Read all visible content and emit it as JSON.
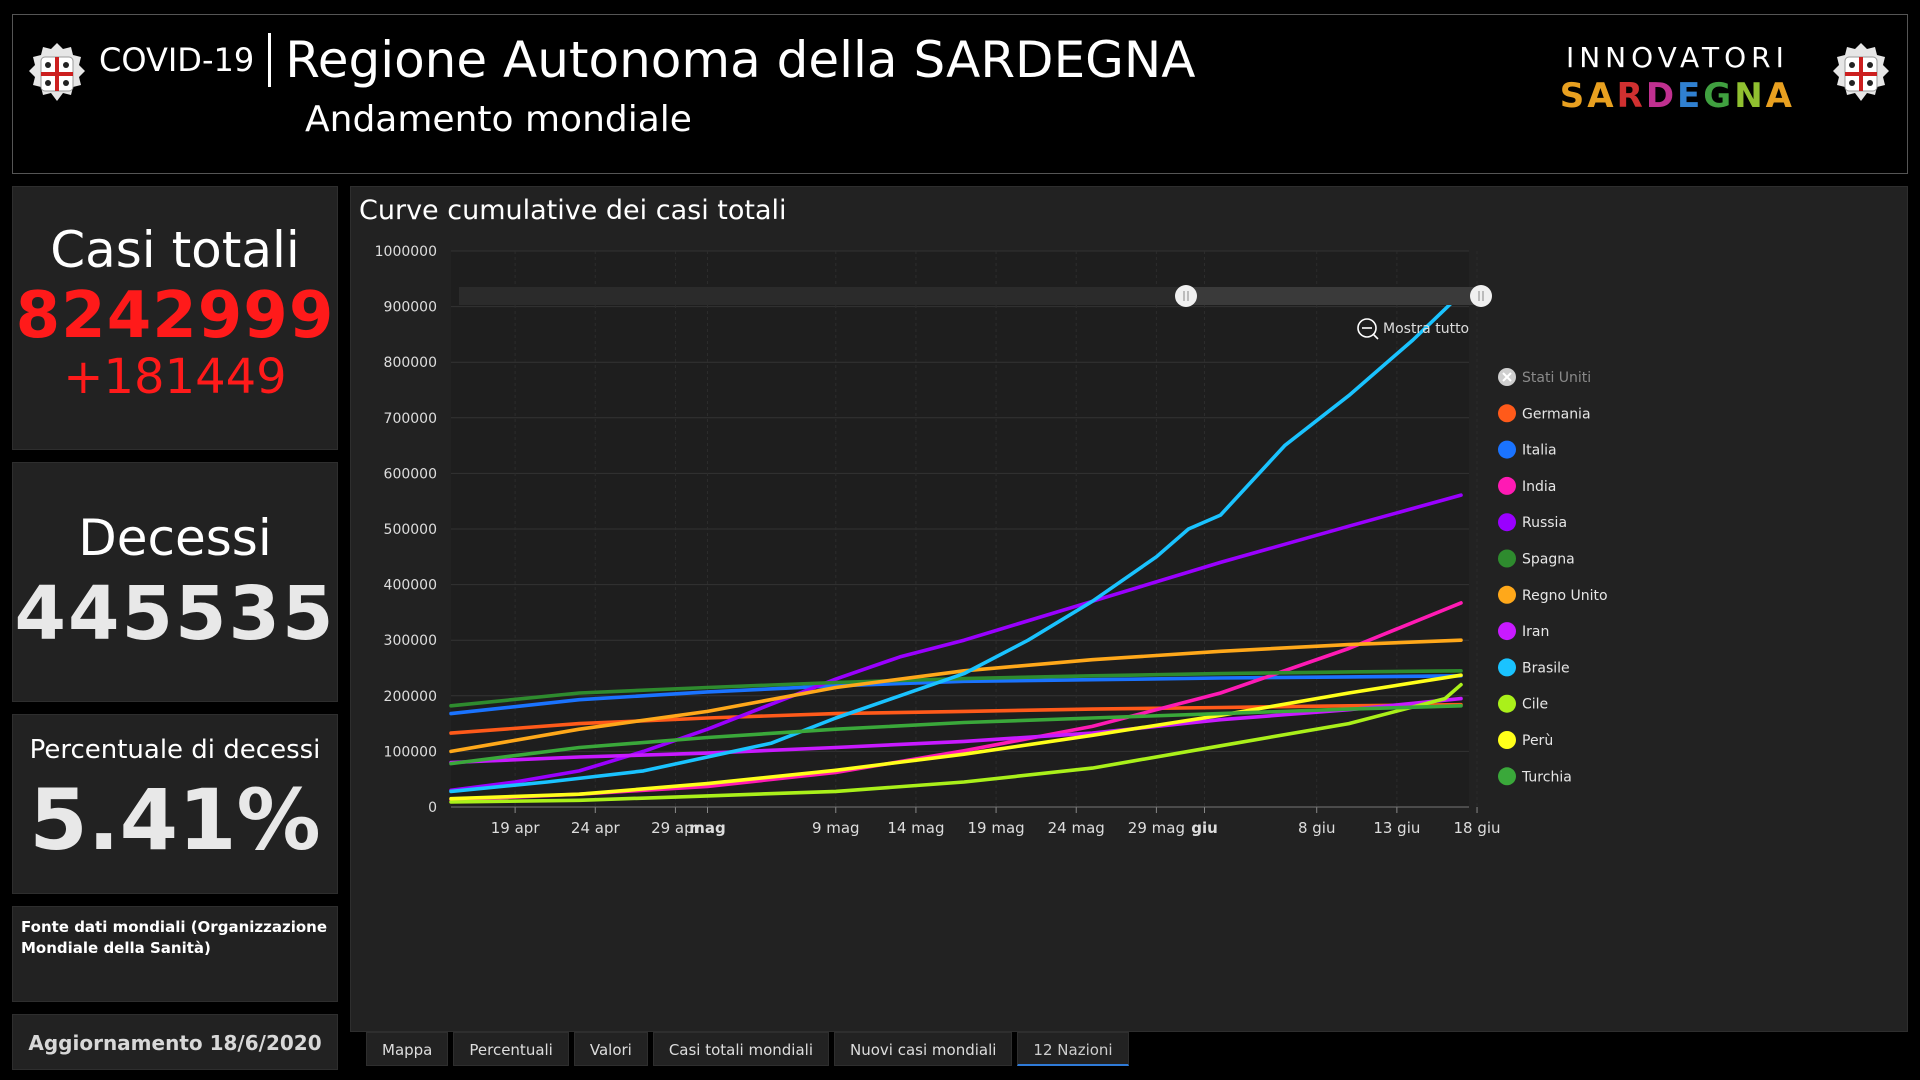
{
  "header": {
    "covid_label": "COVID-19",
    "region_title": "Regione Autonoma della SARDEGNA",
    "subtitle": "Andamento mondiale",
    "logo_top": "INNOVATORI",
    "logo_bottom_letters": [
      "S",
      "A",
      "R",
      "D",
      "E",
      "G",
      "N",
      "A"
    ],
    "logo_colors": [
      "#e8a020",
      "#e8a020",
      "#d03030",
      "#c03090",
      "#3080d0",
      "#40a040",
      "#90c030",
      "#e8a020"
    ]
  },
  "stats": {
    "cases_title": "Casi totali",
    "cases_value": "8242999",
    "cases_delta": "+181449",
    "deaths_title": "Decessi",
    "deaths_value": "445535",
    "rate_title": "Percentuale di decessi",
    "rate_value": "5.41%",
    "source": "Fonte dati mondiali (Organizzazione Mondiale della Sanità)",
    "update": "Aggiornamento 18/6/2020"
  },
  "chart": {
    "title": "Curve cumulative dei casi totali",
    "zoom_label": "Mostra tutto"
  },
  "tabs": [
    "Mappa",
    "Percentuali",
    "Valori",
    "Casi totali mondiali",
    "Nuovi casi mondiali",
    "12 Nazioni"
  ],
  "chart_data": {
    "type": "line",
    "title": "Curve cumulative dei casi totali",
    "xlabel": "",
    "ylabel": "",
    "ylim": [
      0,
      1000000
    ],
    "yticks": [
      0,
      100000,
      200000,
      300000,
      400000,
      500000,
      600000,
      700000,
      800000,
      900000,
      1000000
    ],
    "yticklabels": [
      "0",
      "100000",
      "200000",
      "300000",
      "400000",
      "500000",
      "600000",
      "700000",
      "800000",
      "900000",
      "1000000"
    ],
    "x_day_range": [
      0,
      63
    ],
    "xticks": [
      {
        "day": 4,
        "label": "19 apr",
        "bold": false
      },
      {
        "day": 9,
        "label": "24 apr",
        "bold": false
      },
      {
        "day": 14,
        "label": "29 apr",
        "bold": false
      },
      {
        "day": 16,
        "label": "mag",
        "bold": true
      },
      {
        "day": 24,
        "label": "9 mag",
        "bold": false
      },
      {
        "day": 29,
        "label": "14 mag",
        "bold": false
      },
      {
        "day": 34,
        "label": "19 mag",
        "bold": false
      },
      {
        "day": 39,
        "label": "24 mag",
        "bold": false
      },
      {
        "day": 44,
        "label": "29 mag",
        "bold": false
      },
      {
        "day": 47,
        "label": "giu",
        "bold": true
      },
      {
        "day": 54,
        "label": "8 giu",
        "bold": false
      },
      {
        "day": 59,
        "label": "13 giu",
        "bold": false
      },
      {
        "day": 64,
        "label": "18 giu",
        "bold": false
      }
    ],
    "series": [
      {
        "name": "Stati Uniti",
        "color": "#cfcfcf",
        "hidden": true,
        "days": [],
        "values": []
      },
      {
        "name": "Germania",
        "color": "#ff5a1a",
        "days": [
          0,
          8,
          16,
          24,
          32,
          40,
          48,
          56,
          63
        ],
        "values": [
          133000,
          150000,
          160000,
          168000,
          172000,
          176000,
          179000,
          182000,
          184000
        ]
      },
      {
        "name": "Italia",
        "color": "#1a73ff",
        "days": [
          0,
          8,
          16,
          24,
          32,
          40,
          48,
          56,
          63
        ],
        "values": [
          168000,
          193000,
          207000,
          218000,
          226000,
          229000,
          232000,
          234000,
          236000
        ]
      },
      {
        "name": "India",
        "color": "#ff1ab4",
        "days": [
          0,
          8,
          16,
          24,
          32,
          40,
          48,
          56,
          63
        ],
        "values": [
          13000,
          23000,
          37000,
          62000,
          101000,
          145000,
          205000,
          285000,
          367000
        ]
      },
      {
        "name": "Russia",
        "color": "#9a00ff",
        "days": [
          0,
          4,
          8,
          12,
          16,
          20,
          24,
          28,
          32,
          40,
          48,
          56,
          63
        ],
        "values": [
          30000,
          45000,
          65000,
          100000,
          140000,
          185000,
          230000,
          270000,
          300000,
          370000,
          440000,
          505000,
          561000
        ]
      },
      {
        "name": "Spagna",
        "color": "#2e8b2e",
        "days": [
          0,
          8,
          16,
          24,
          32,
          40,
          48,
          56,
          63
        ],
        "values": [
          182000,
          205000,
          215000,
          224000,
          231000,
          236000,
          240000,
          243000,
          245000
        ]
      },
      {
        "name": "Regno Unito",
        "color": "#ffa81a",
        "days": [
          0,
          8,
          16,
          24,
          32,
          40,
          48,
          56,
          63
        ],
        "values": [
          100000,
          140000,
          172000,
          215000,
          245000,
          265000,
          280000,
          292000,
          300000
        ]
      },
      {
        "name": "Iran",
        "color": "#c81aff",
        "days": [
          0,
          8,
          16,
          24,
          32,
          40,
          48,
          56,
          63
        ],
        "values": [
          80000,
          90000,
          97000,
          107000,
          118000,
          133000,
          157000,
          175000,
          195000
        ]
      },
      {
        "name": "Brasile",
        "color": "#1ac3ff",
        "days": [
          0,
          6,
          12,
          16,
          20,
          24,
          28,
          32,
          36,
          40,
          44,
          46,
          48,
          52,
          56,
          60,
          63
        ],
        "values": [
          28000,
          45000,
          65000,
          90000,
          115000,
          160000,
          200000,
          240000,
          300000,
          370000,
          450000,
          500000,
          525000,
          650000,
          740000,
          840000,
          923000
        ]
      },
      {
        "name": "Cile",
        "color": "#aaf01a",
        "days": [
          0,
          8,
          16,
          24,
          32,
          40,
          48,
          56,
          62,
          63
        ],
        "values": [
          9000,
          12000,
          20000,
          28000,
          45000,
          70000,
          110000,
          150000,
          195000,
          220000
        ]
      },
      {
        "name": "Perù",
        "color": "#ffff1a",
        "days": [
          0,
          8,
          16,
          24,
          32,
          40,
          48,
          56,
          63
        ],
        "values": [
          15000,
          23000,
          42000,
          66000,
          95000,
          129000,
          165000,
          205000,
          237000
        ]
      },
      {
        "name": "Turchia",
        "color": "#3aa83a",
        "days": [
          0,
          8,
          16,
          24,
          32,
          40,
          48,
          56,
          63
        ],
        "values": [
          78000,
          107000,
          125000,
          140000,
          152000,
          160000,
          168000,
          176000,
          182000
        ]
      }
    ]
  }
}
